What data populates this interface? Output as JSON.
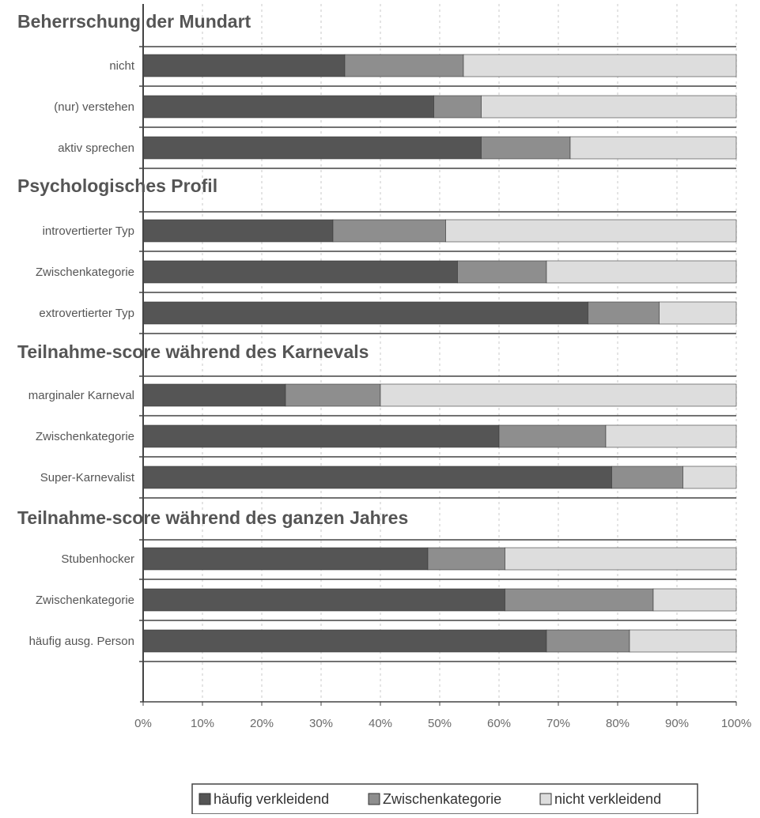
{
  "chart_data": {
    "type": "bar",
    "orientation": "horizontal",
    "stacked": true,
    "normalized": true,
    "xlim": [
      0,
      100
    ],
    "x_ticks": [
      "0%",
      "10%",
      "20%",
      "30%",
      "40%",
      "50%",
      "60%",
      "70%",
      "80%",
      "90%",
      "100%"
    ],
    "grid": "vertical dashed",
    "legend_position": "bottom",
    "series": [
      {
        "name": "häufig verkleidend",
        "color": "#555555"
      },
      {
        "name": "Zwischenkategorie",
        "color": "#8e8e8e"
      },
      {
        "name": "nicht verkleidend",
        "color": "#dddddd"
      }
    ],
    "groups": [
      {
        "title": "Beherrschung der Mundart",
        "bars": [
          {
            "label": "nicht",
            "values": [
              34,
              20,
              46
            ]
          },
          {
            "label": "(nur) verstehen",
            "values": [
              49,
              8,
              43
            ]
          },
          {
            "label": "aktiv sprechen",
            "values": [
              57,
              15,
              28
            ]
          }
        ]
      },
      {
        "title": "Psychologisches Profil",
        "bars": [
          {
            "label": "introvertierter Typ",
            "values": [
              32,
              19,
              49
            ]
          },
          {
            "label": "Zwischenkategorie",
            "values": [
              53,
              15,
              32
            ]
          },
          {
            "label": "extrovertierter Typ",
            "values": [
              75,
              12,
              13
            ]
          }
        ]
      },
      {
        "title": "Teilnahme-score während des Karnevals",
        "bars": [
          {
            "label": "marginaler Karneval",
            "values": [
              24,
              16,
              60
            ]
          },
          {
            "label": "Zwischenkategorie",
            "values": [
              60,
              18,
              22
            ]
          },
          {
            "label": "Super-Karnevalist",
            "values": [
              79,
              12,
              9
            ]
          }
        ]
      },
      {
        "title": "Teilnahme-score während des ganzen Jahres",
        "bars": [
          {
            "label": "Stubenhocker",
            "values": [
              48,
              13,
              39
            ]
          },
          {
            "label": "Zwischenkategorie",
            "values": [
              61,
              25,
              14
            ]
          },
          {
            "label": "häufig ausg. Person",
            "values": [
              68,
              14,
              18
            ]
          }
        ]
      }
    ]
  }
}
